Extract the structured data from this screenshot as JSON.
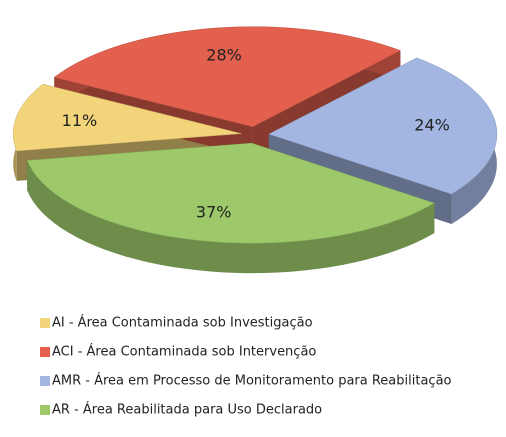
{
  "chart_data": {
    "type": "pie",
    "categories": [
      "AI - Área Contaminada sob Investigação",
      "ACI - Área Contaminada sob Intervenção",
      "AMR - Área em Processo de Monitoramento para Reabilitação",
      "AR - Área Reabilitada para Uso Declarado"
    ],
    "values": [
      11,
      28,
      24,
      37
    ],
    "value_labels": [
      "11%",
      "28%",
      "24%",
      "37%"
    ],
    "colors": [
      "#f2d47a",
      "#e2604d",
      "#a3b6e2",
      "#9dc96a"
    ]
  }
}
